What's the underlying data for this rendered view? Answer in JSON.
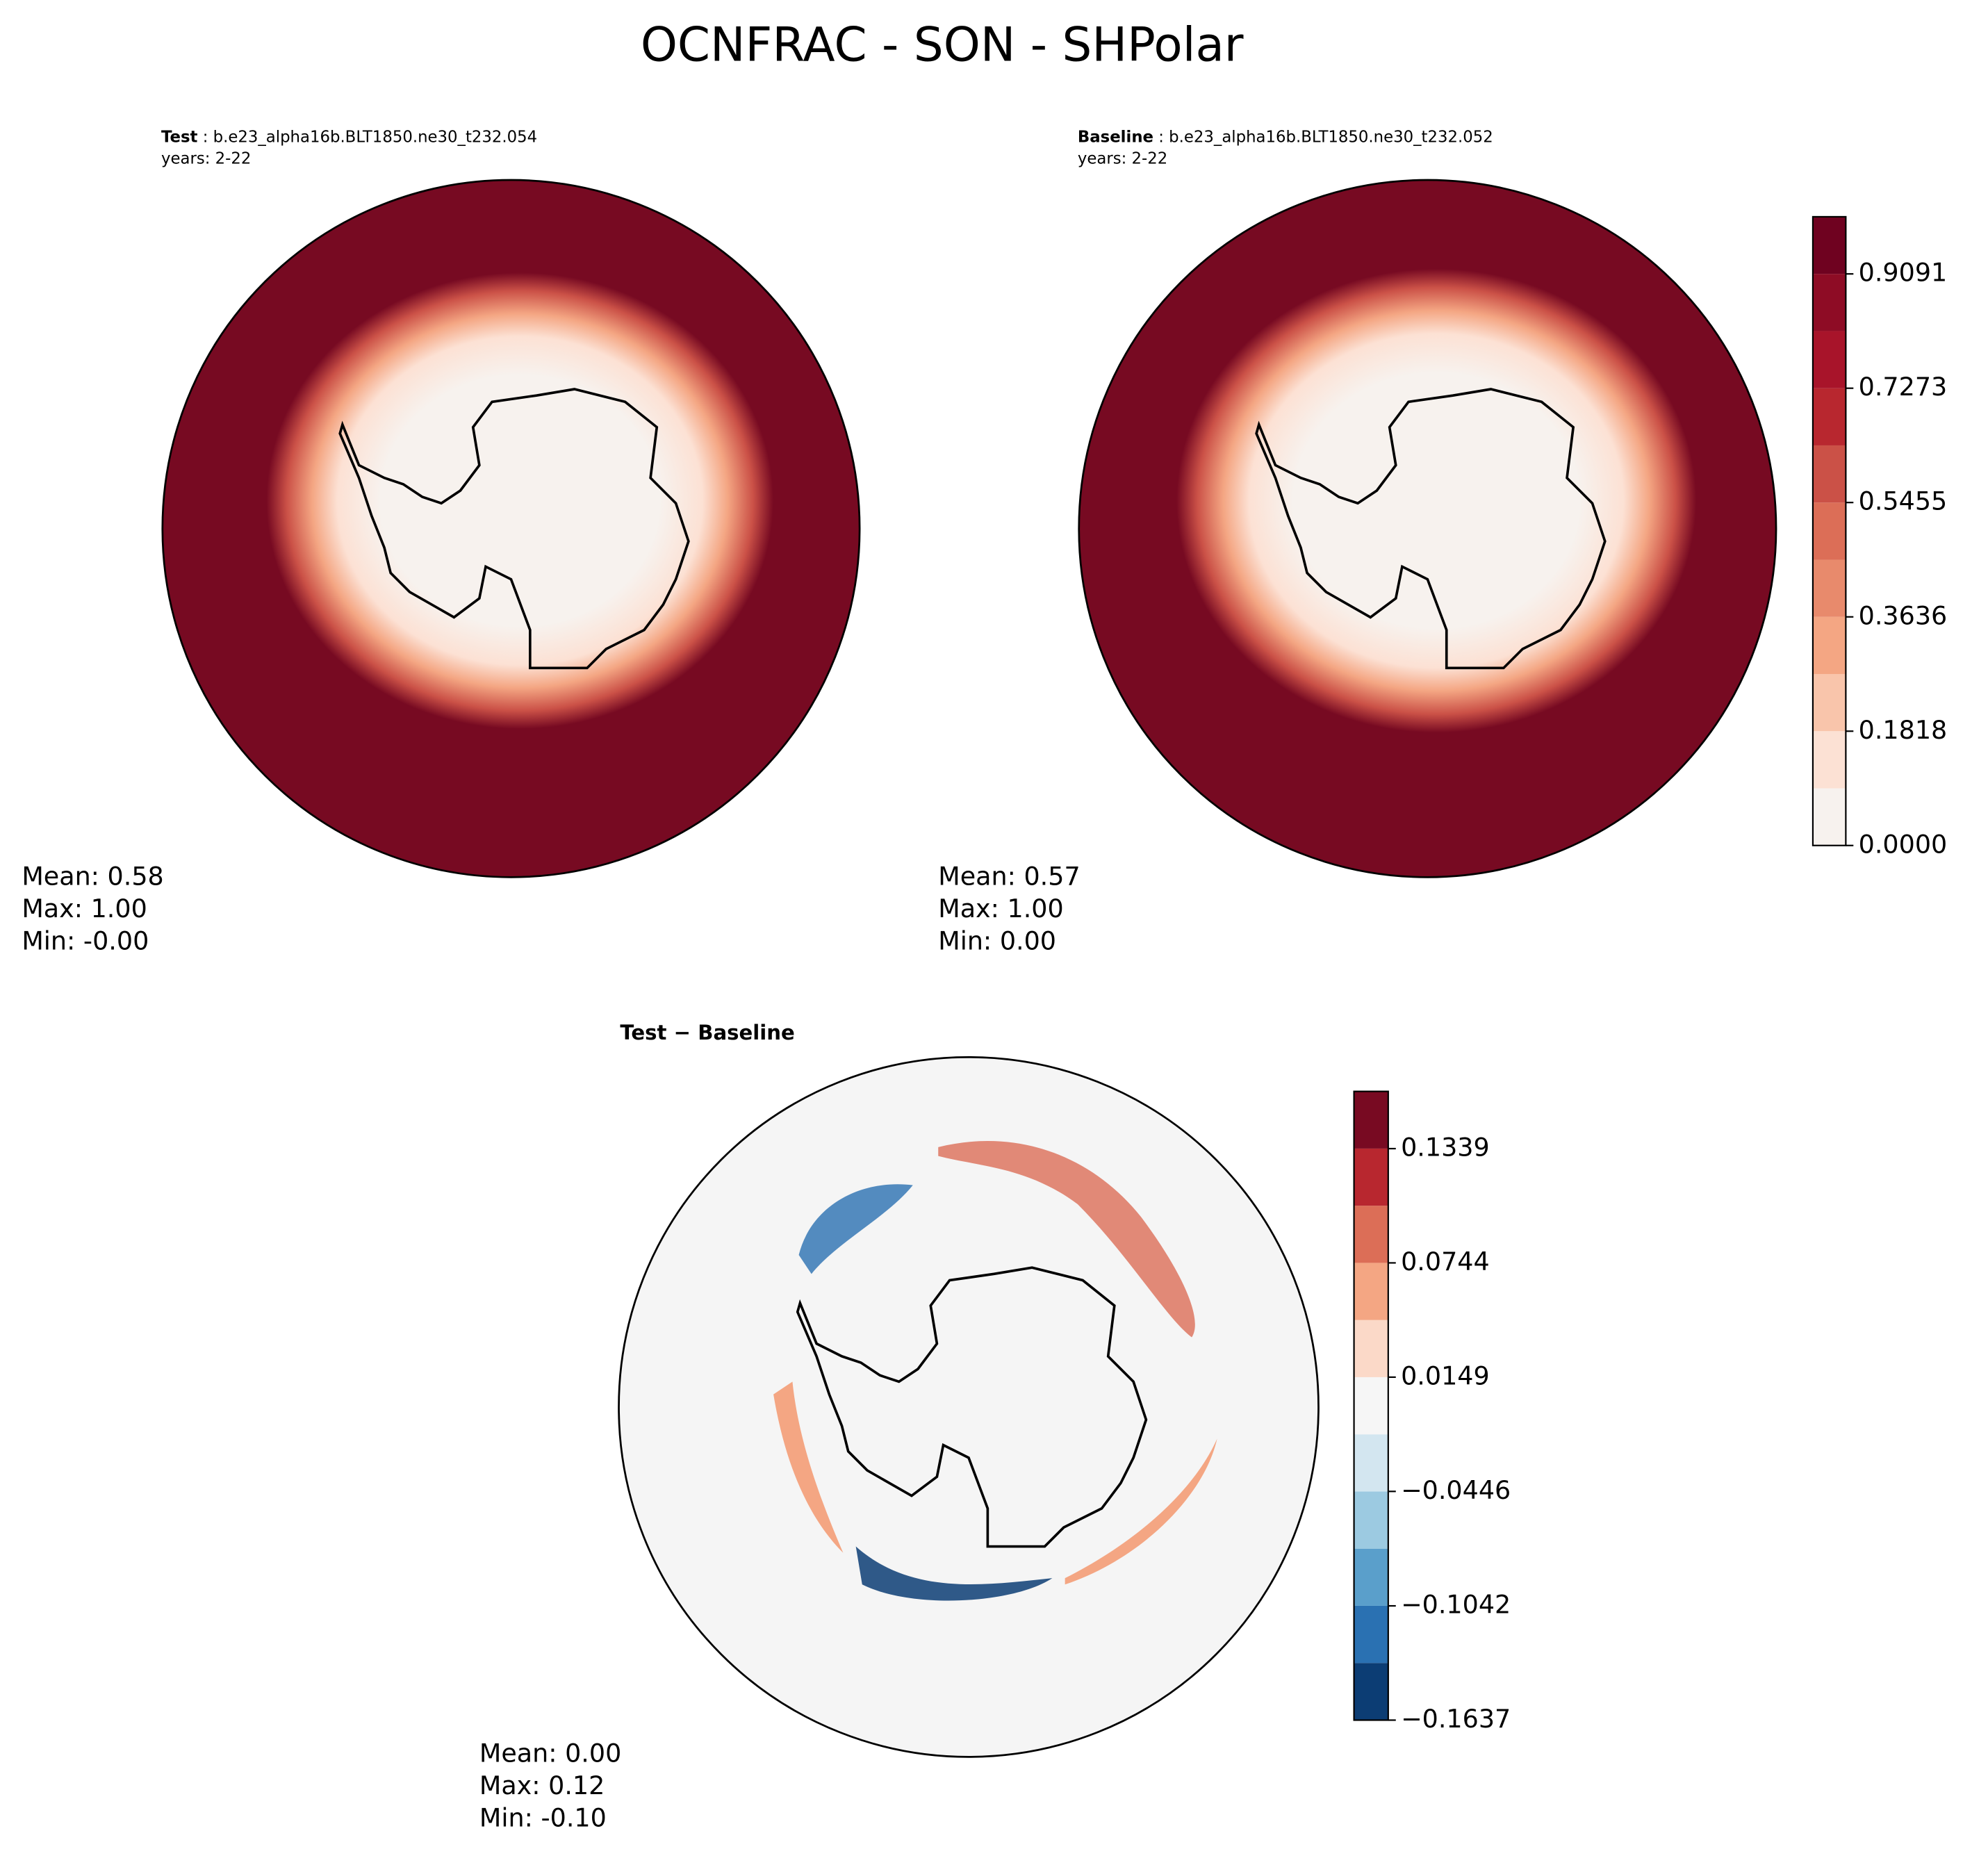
{
  "title": "OCNFRAC - SON - SHPolar",
  "chart_data": [
    {
      "type": "map",
      "case_label": "Test",
      "case_name": ": b.e23_alpha16b.BLT1850.ne30_t232.054",
      "years": "years: 2-22",
      "stats": [
        "Mean:  0.58",
        "Max:  1.00",
        "Min: -0.00"
      ]
    },
    {
      "type": "map",
      "case_label": "Baseline",
      "case_name": ": b.e23_alpha16b.BLT1850.ne30_t232.052",
      "years": "years: 2-22",
      "stats": [
        "Mean:  0.57",
        "Max:  1.00",
        "Min:  0.00"
      ],
      "colorbar": {
        "lim": [
          0,
          1
        ],
        "ticks": [
          {
            "value": 0,
            "label": "0.0000"
          },
          0.1818,
          0.3636,
          0.5455,
          0.7273,
          0.9091
        ],
        "colors": [
          "#f7f2ee",
          "#fce1d4",
          "#f9c5ab",
          "#f4a683",
          "#e88a6c",
          "#dc6e57",
          "#cb5147",
          "#b8272f",
          "#a8142a",
          "#8e0c25",
          "#6f0220"
        ]
      }
    },
    {
      "type": "map",
      "title": "Test − Baseline",
      "stats": [
        "Mean:  0.00",
        "Max:  0.12",
        "Min: -0.10"
      ],
      "colorbar": {
        "lim": [
          -0.1637,
          0.1637
        ],
        "ticks": [
          {
            "value": -0.1637,
            "label": "−0.1637"
          },
          {
            "value": -0.1042,
            "label": "−0.1042"
          },
          {
            "value": -0.0446,
            "label": "−0.0446"
          },
          0.0149,
          0.0744,
          0.1339
        ],
        "colors": [
          "#0c3d74",
          "#2a71b2",
          "#5a9fcb",
          "#9ccae1",
          "#d3e6f0",
          "#f6f6f6",
          "#fbd9c8",
          "#f4a683",
          "#dc6e57",
          "#b8272f",
          "#780a22"
        ]
      }
    }
  ]
}
